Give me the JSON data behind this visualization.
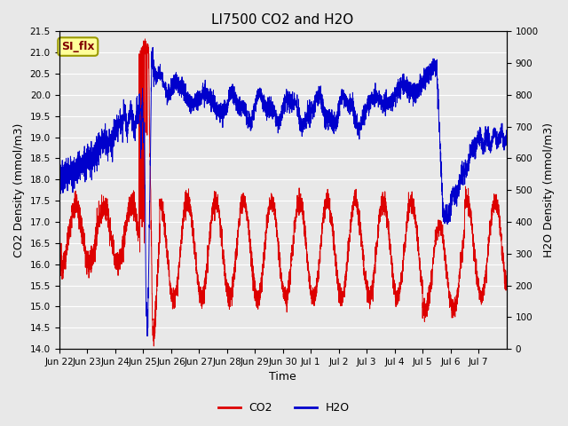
{
  "title": "LI7500 CO2 and H2O",
  "xlabel": "Time",
  "ylabel_left": "CO2 Density (mmol/m3)",
  "ylabel_right": "H2O Density (mmol/m3)",
  "ylim_left": [
    14.0,
    21.5
  ],
  "ylim_right": [
    0,
    1000
  ],
  "co2_color": "#DD0000",
  "h2o_color": "#0000CC",
  "bg_color": "#E8E8E8",
  "grid_color": "#FFFFFF",
  "annotation_text": "SI_flx",
  "annotation_bg": "#FFFF99",
  "annotation_border": "#999900",
  "legend_co2": "CO2",
  "legend_h2o": "H2O",
  "x_tick_labels": [
    "Jun 22",
    "Jun 23",
    "Jun 24",
    "Jun 25",
    "Jun 26",
    "Jun 27",
    "Jun 28",
    "Jun 29",
    "Jun 30",
    "Jul 1",
    "Jul 2",
    "Jul 3",
    "Jul 4",
    "Jul 5",
    "Jul 6",
    "Jul 7"
  ],
  "title_fontsize": 11,
  "axis_label_fontsize": 9,
  "tick_fontsize": 7.5
}
